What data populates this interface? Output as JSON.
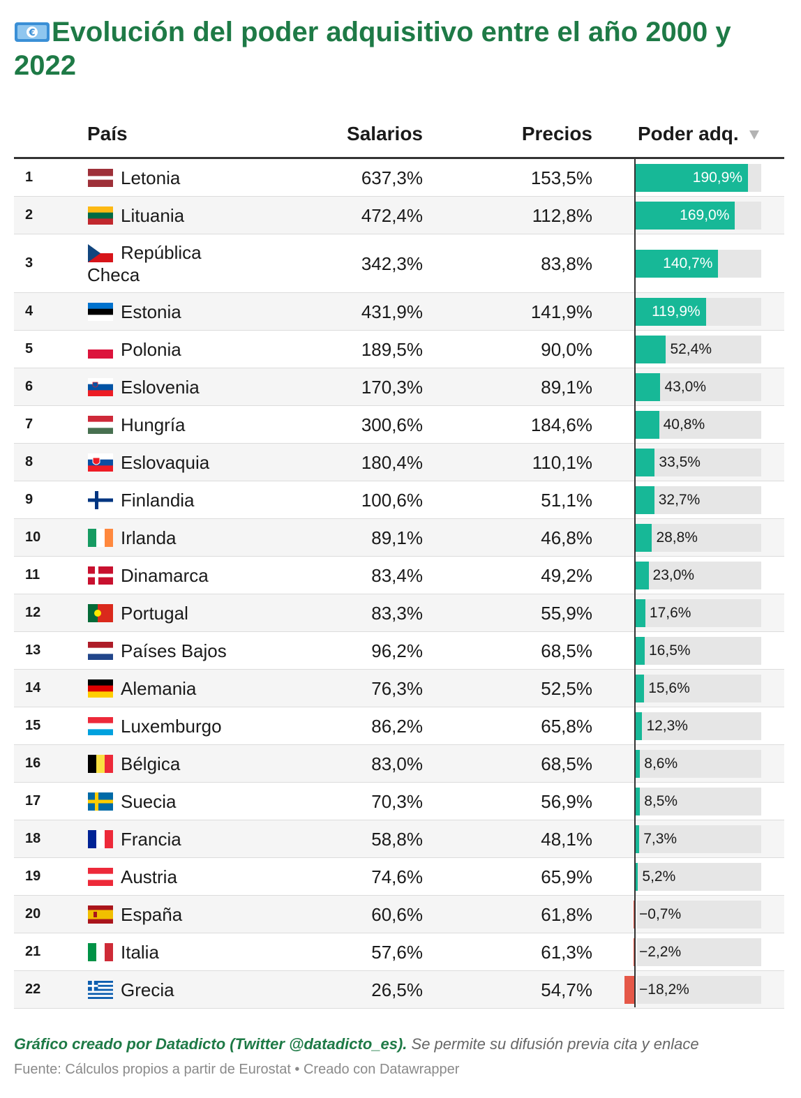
{
  "title": "Evolución del poder adquisitivo entre el año 2000 y 2022",
  "headers": {
    "pais": "País",
    "salarios": "Salarios",
    "precios": "Precios",
    "poder": "Poder adq."
  },
  "footer": {
    "credit": "Gráfico creado por Datadicto (Twitter @datadicto_es).",
    "note": " Se permite su difusión previa cita y enlace",
    "source": "Fuente: Cálculos propios a partir de Eurostat • Creado con Datawrapper"
  },
  "colors": {
    "title": "#1e7a46",
    "positive": "#17b897",
    "negative": "#e55848",
    "track": "#e6e6e6"
  },
  "chart_data": {
    "type": "table",
    "columns": [
      "País",
      "Salarios",
      "Precios",
      "Poder adq."
    ],
    "bar_column": "Poder adq.",
    "sort": "Poder adq. descending",
    "rows": [
      {
        "rank": "1",
        "country": "Letonia",
        "flag": "lv",
        "salarios": "637,3%",
        "precios": "153,5%",
        "poder": 190.9,
        "poder_label": "190,9%"
      },
      {
        "rank": "2",
        "country": "Lituania",
        "flag": "lt",
        "salarios": "472,4%",
        "precios": "112,8%",
        "poder": 169.0,
        "poder_label": "169,0%"
      },
      {
        "rank": "3",
        "country": "República Checa",
        "flag": "cz",
        "salarios": "342,3%",
        "precios": "83,8%",
        "poder": 140.7,
        "poder_label": "140,7%"
      },
      {
        "rank": "4",
        "country": "Estonia",
        "flag": "ee",
        "salarios": "431,9%",
        "precios": "141,9%",
        "poder": 119.9,
        "poder_label": "119,9%"
      },
      {
        "rank": "5",
        "country": "Polonia",
        "flag": "pl",
        "salarios": "189,5%",
        "precios": "90,0%",
        "poder": 52.4,
        "poder_label": "52,4%"
      },
      {
        "rank": "6",
        "country": "Eslovenia",
        "flag": "si",
        "salarios": "170,3%",
        "precios": "89,1%",
        "poder": 43.0,
        "poder_label": "43,0%"
      },
      {
        "rank": "7",
        "country": "Hungría",
        "flag": "hu",
        "salarios": "300,6%",
        "precios": "184,6%",
        "poder": 40.8,
        "poder_label": "40,8%"
      },
      {
        "rank": "8",
        "country": "Eslovaquia",
        "flag": "sk",
        "salarios": "180,4%",
        "precios": "110,1%",
        "poder": 33.5,
        "poder_label": "33,5%"
      },
      {
        "rank": "9",
        "country": "Finlandia",
        "flag": "fi",
        "salarios": "100,6%",
        "precios": "51,1%",
        "poder": 32.7,
        "poder_label": "32,7%"
      },
      {
        "rank": "10",
        "country": "Irlanda",
        "flag": "ie",
        "salarios": "89,1%",
        "precios": "46,8%",
        "poder": 28.8,
        "poder_label": "28,8%"
      },
      {
        "rank": "11",
        "country": "Dinamarca",
        "flag": "dk",
        "salarios": "83,4%",
        "precios": "49,2%",
        "poder": 23.0,
        "poder_label": "23,0%"
      },
      {
        "rank": "12",
        "country": "Portugal",
        "flag": "pt",
        "salarios": "83,3%",
        "precios": "55,9%",
        "poder": 17.6,
        "poder_label": "17,6%"
      },
      {
        "rank": "13",
        "country": "Países Bajos",
        "flag": "nl",
        "salarios": "96,2%",
        "precios": "68,5%",
        "poder": 16.5,
        "poder_label": "16,5%"
      },
      {
        "rank": "14",
        "country": "Alemania",
        "flag": "de",
        "salarios": "76,3%",
        "precios": "52,5%",
        "poder": 15.6,
        "poder_label": "15,6%"
      },
      {
        "rank": "15",
        "country": "Luxemburgo",
        "flag": "lu",
        "salarios": "86,2%",
        "precios": "65,8%",
        "poder": 12.3,
        "poder_label": "12,3%"
      },
      {
        "rank": "16",
        "country": "Bélgica",
        "flag": "be",
        "salarios": "83,0%",
        "precios": "68,5%",
        "poder": 8.6,
        "poder_label": "8,6%"
      },
      {
        "rank": "17",
        "country": "Suecia",
        "flag": "se",
        "salarios": "70,3%",
        "precios": "56,9%",
        "poder": 8.5,
        "poder_label": "8,5%"
      },
      {
        "rank": "18",
        "country": "Francia",
        "flag": "fr",
        "salarios": "58,8%",
        "precios": "48,1%",
        "poder": 7.3,
        "poder_label": "7,3%"
      },
      {
        "rank": "19",
        "country": "Austria",
        "flag": "at",
        "salarios": "74,6%",
        "precios": "65,9%",
        "poder": 5.2,
        "poder_label": "5,2%"
      },
      {
        "rank": "20",
        "country": "España",
        "flag": "es",
        "salarios": "60,6%",
        "precios": "61,8%",
        "poder": -0.7,
        "poder_label": "−0,7%"
      },
      {
        "rank": "21",
        "country": "Italia",
        "flag": "it",
        "salarios": "57,6%",
        "precios": "61,3%",
        "poder": -2.2,
        "poder_label": "−2,2%"
      },
      {
        "rank": "22",
        "country": "Grecia",
        "flag": "gr",
        "salarios": "26,5%",
        "precios": "54,7%",
        "poder": -18.2,
        "poder_label": "−18,2%"
      }
    ]
  }
}
